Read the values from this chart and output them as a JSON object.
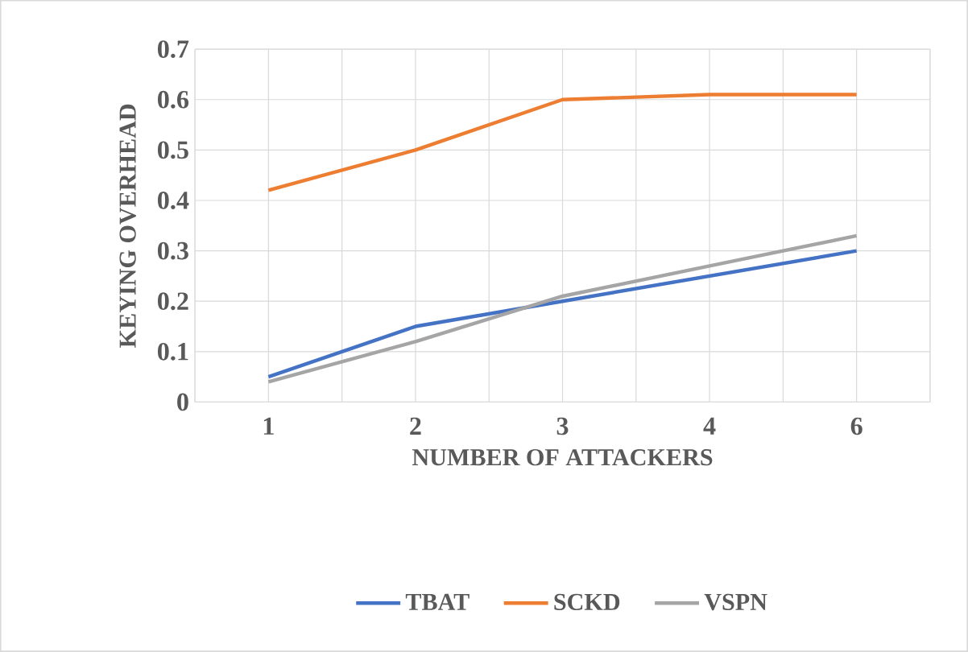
{
  "chart_data": {
    "type": "line",
    "xlabel": "NUMBER OF ATTACKERS",
    "ylabel": "KEYING OVERHEAD",
    "categories": [
      "1",
      "2",
      "3",
      "4",
      "6"
    ],
    "series": [
      {
        "name": "TBAT",
        "color": "#4472c4",
        "values": [
          0.05,
          0.15,
          0.2,
          0.25,
          0.3
        ]
      },
      {
        "name": "SCKD",
        "color": "#ed7d31",
        "values": [
          0.42,
          0.5,
          0.6,
          0.61,
          0.61
        ]
      },
      {
        "name": "VSPN",
        "color": "#a5a5a5",
        "values": [
          0.04,
          0.12,
          0.21,
          0.27,
          0.33
        ]
      }
    ],
    "ylim": [
      0,
      0.7
    ],
    "yticks": [
      0,
      0.1,
      0.2,
      0.3,
      0.4,
      0.5,
      0.6,
      0.7
    ],
    "grid": true,
    "legend": "bottom",
    "marker": "none",
    "line_style": "solid"
  }
}
